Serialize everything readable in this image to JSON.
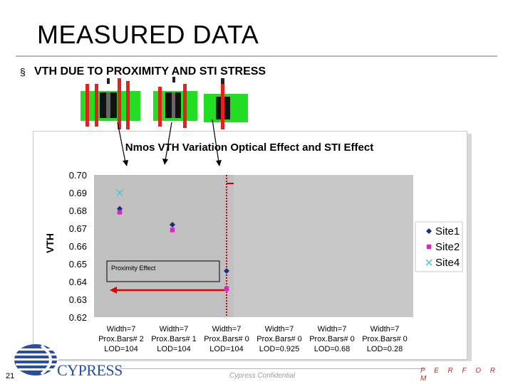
{
  "slide": {
    "title": "MEASURED DATA",
    "bullet_marker": "§",
    "bullet_text": "VTH DUE TO PROXIMITY AND STI STRESS",
    "page_number": "21",
    "footer_confidential": "Cypress Confidential",
    "footer_tagline": "P E R F O R M",
    "logo_text": "CYPRESS"
  },
  "chart_data": {
    "type": "scatter",
    "title": "Nmos VTH Variation Optical Effect and STI Effect",
    "ylabel": "VTH",
    "ylim": [
      0.62,
      0.7
    ],
    "yticks": [
      "0.70",
      "0.69",
      "0.68",
      "0.67",
      "0.66",
      "0.65",
      "0.64",
      "0.63",
      "0.62"
    ],
    "categories": [
      [
        "Width=7",
        "Prox.Bars# 2",
        "LOD=104"
      ],
      [
        "Width=7",
        "Prox.Bars# 1",
        "LOD=104"
      ],
      [
        "Width=7",
        "Prox.Bars# 0",
        "LOD=104"
      ],
      [
        "Width=7",
        "Prox.Bars# 0",
        "LOD=0.925"
      ],
      [
        "Width=7",
        "Prox.Bars# 0",
        "LOD=0.68"
      ],
      [
        "Width=7",
        "Prox.Bars# 0",
        "LOD=0.28"
      ]
    ],
    "series": [
      {
        "name": "Site1",
        "marker": "diamond",
        "color": "#1a2a8c",
        "values": [
          0.681,
          0.672,
          0.646,
          null,
          null,
          null
        ]
      },
      {
        "name": "Site2",
        "marker": "square",
        "color": "#e020c8",
        "values": [
          0.679,
          0.669,
          0.636,
          null,
          null,
          null
        ]
      },
      {
        "name": "Site4",
        "marker": "x",
        "color": "#40c8d8",
        "values": [
          0.69,
          null,
          null,
          null,
          null,
          null
        ]
      }
    ],
    "annotation": "Proximity Effect",
    "legend_position": "right",
    "plot_background": "#c0c0c0",
    "grid": false
  }
}
